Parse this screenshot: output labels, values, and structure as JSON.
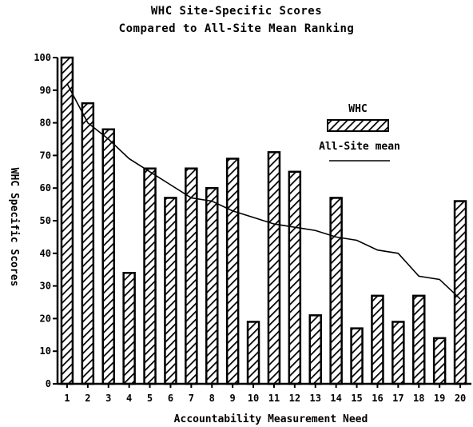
{
  "chart_data": {
    "type": "bar",
    "title": "WHC Site-Specific Scores",
    "subtitle": "Compared to All-Site Mean Ranking",
    "xlabel": "Accountability Measurement Need",
    "ylabel": "WHC Specific Scores",
    "ylim": [
      0,
      100
    ],
    "yticks": [
      0,
      10,
      20,
      30,
      40,
      50,
      60,
      70,
      80,
      90,
      100
    ],
    "categories": [
      "1",
      "2",
      "3",
      "4",
      "5",
      "6",
      "7",
      "8",
      "9",
      "10",
      "11",
      "12",
      "13",
      "14",
      "15",
      "16",
      "17",
      "18",
      "19",
      "20"
    ],
    "series": [
      {
        "name": "WHC",
        "type": "bar",
        "values": [
          100,
          86,
          78,
          34,
          66,
          57,
          66,
          60,
          69,
          19,
          71,
          65,
          21,
          57,
          17,
          27,
          19,
          27,
          14,
          56
        ]
      },
      {
        "name": "All-Site mean",
        "type": "line",
        "values": [
          92,
          80,
          75,
          69,
          65,
          61,
          57,
          56,
          53,
          51,
          49,
          48,
          47,
          45,
          44,
          41,
          40,
          33,
          32,
          26
        ]
      }
    ],
    "legend_position": "top-right",
    "grid": false,
    "colors": {
      "bar_stroke": "#000000",
      "bar_fill": "#ffffff",
      "line": "#000000"
    }
  }
}
